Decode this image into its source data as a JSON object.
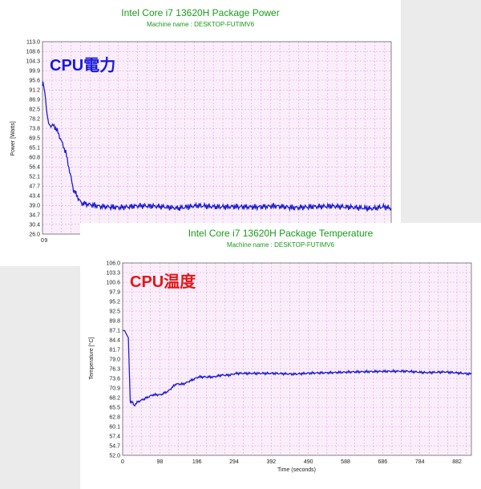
{
  "chart_data": [
    {
      "type": "line",
      "title": "Intel Core i7 13620H Package Power",
      "subtitle": "Machine name : DESKTOP-FUTIMV6",
      "overlay_label": "CPU電力",
      "ylabel": "Power [Watts]",
      "xlabel": "",
      "y_ticks": [
        "113.0",
        "108.6",
        "104.3",
        "99.9",
        "95.6",
        "91.2",
        "86.9",
        "82.5",
        "78.2",
        "73.8",
        "69.5",
        "65.1",
        "60.8",
        "56.4",
        "52.1",
        "47.7",
        "43.4",
        "39.0",
        "34.7",
        "30.4",
        "26.0"
      ],
      "x_ticks": [
        "0",
        "9"
      ],
      "ylim": [
        26.0,
        113.0
      ],
      "xlim": [
        0,
        900
      ],
      "grid": true,
      "series": [
        {
          "color": "#1f1fd0",
          "x": [
            0,
            1,
            2,
            3,
            4,
            5,
            6,
            8,
            10,
            12,
            14,
            16,
            20,
            30,
            40,
            60,
            80,
            100,
            150,
            200,
            250,
            300,
            350,
            400,
            450,
            500,
            550,
            600,
            650,
            700,
            750,
            800,
            850,
            880,
            900
          ],
          "y": [
            93,
            95,
            94,
            93,
            92,
            91,
            90,
            87,
            83,
            80,
            78,
            76,
            75,
            75,
            72,
            63,
            46,
            40,
            38.5,
            38,
            38.8,
            38.5,
            37.7,
            38.9,
            38.3,
            38.4,
            38.2,
            38.7,
            37.9,
            38.4,
            38.6,
            38.1,
            37.5,
            38.4,
            37.6
          ]
        }
      ]
    },
    {
      "type": "line",
      "title": "Intel Core i7 13620H Package Temperature",
      "subtitle": "Machine name : DESKTOP-FUTIMV6",
      "overlay_label": "CPU温度",
      "ylabel": "Temperature [°C]",
      "xlabel": "Time (seconds)",
      "y_ticks": [
        "106.0",
        "103.3",
        "100.6",
        "97.9",
        "95.2",
        "92.5",
        "89.8",
        "87.1",
        "84.4",
        "81.7",
        "79.0",
        "76.3",
        "73.6",
        "70.9",
        "68.2",
        "65.5",
        "62.8",
        "60.1",
        "57.4",
        "54.7",
        "52.0"
      ],
      "x_ticks": [
        "0",
        "98",
        "196",
        "294",
        "392",
        "490",
        "588",
        "686",
        "784",
        "882"
      ],
      "ylim": [
        52.0,
        106.0
      ],
      "xlim": [
        0,
        920
      ],
      "grid": true,
      "series": [
        {
          "color": "#1f1fd0",
          "x": [
            0,
            5,
            10,
            15,
            20,
            25,
            30,
            40,
            60,
            80,
            100,
            120,
            140,
            160,
            180,
            200,
            220,
            240,
            260,
            280,
            300,
            350,
            400,
            450,
            500,
            550,
            600,
            650,
            700,
            750,
            800,
            850,
            900,
            920
          ],
          "y": [
            87,
            87,
            86,
            85,
            67,
            67,
            66,
            67,
            68,
            69,
            69,
            70,
            72,
            72,
            73,
            74,
            74,
            74,
            74.5,
            74.5,
            75,
            75,
            75,
            74.8,
            75.1,
            75.2,
            75.4,
            75.5,
            75.6,
            75.6,
            75.2,
            75.4,
            75,
            74.8
          ]
        }
      ]
    }
  ]
}
